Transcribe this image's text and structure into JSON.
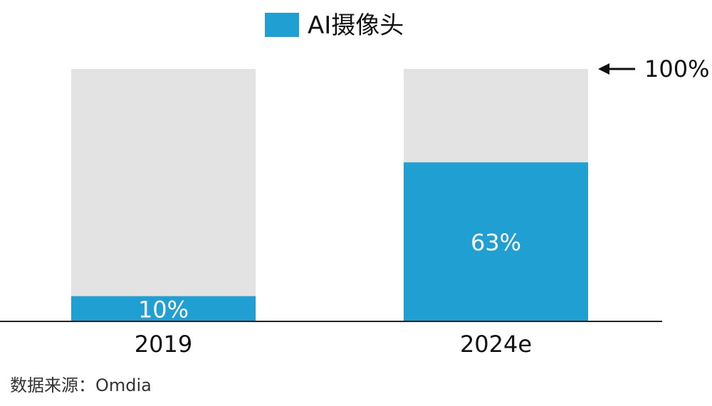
{
  "chart_data": {
    "type": "bar",
    "stacked_percent": true,
    "categories": [
      "2019",
      "2024e"
    ],
    "series": [
      {
        "name": "AI摄像头",
        "values": [
          10,
          63
        ],
        "labels": [
          "10%",
          "63%"
        ]
      }
    ],
    "total": 100,
    "total_label": "100%",
    "ylim": [
      0,
      100
    ],
    "legend": "top-center",
    "grid": false
  },
  "source": "数据来源：Omdia",
  "colors": {
    "series": "#1f9fd2",
    "remainder": "#e4e3e4",
    "axis": "#222222",
    "text": "#111111",
    "label_text": "#ffffff"
  }
}
